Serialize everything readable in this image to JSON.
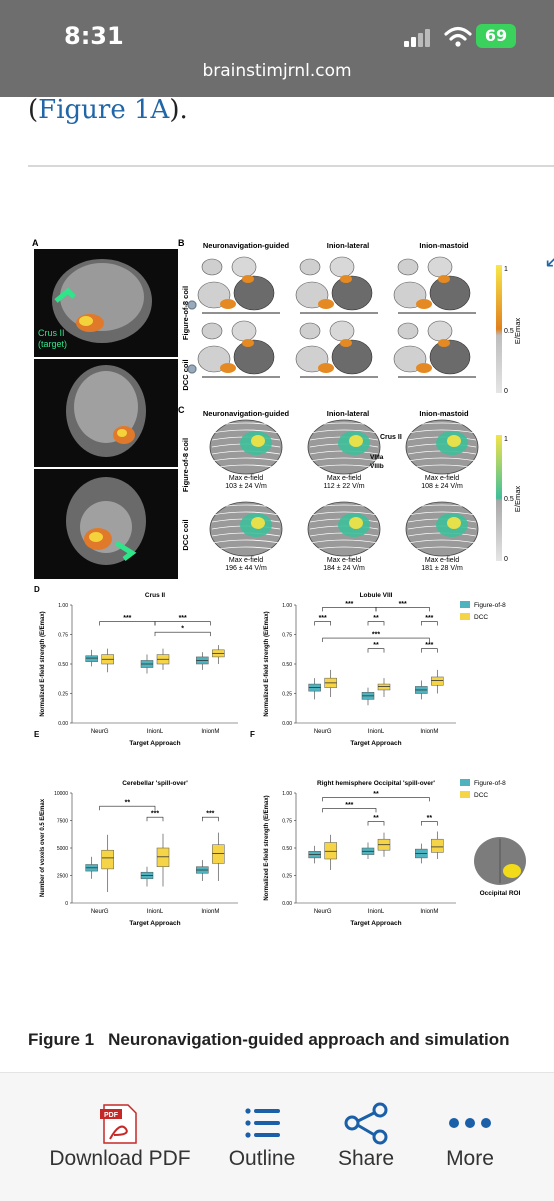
{
  "status_bar": {
    "time": "8:31",
    "url": "brainstimjrnl.com",
    "battery": "69"
  },
  "article": {
    "text_before": "(",
    "link": "Figure 1A",
    "text_after": ")."
  },
  "figure": {
    "panel_a": {
      "label": "A",
      "annotation": "Crus II\n(target)"
    },
    "panel_b": {
      "label": "B",
      "columns": [
        "Neuronavigation-guided",
        "Inion-lateral",
        "Inion-mastoid"
      ],
      "rows": [
        "Figure-of-8 coil",
        "DCC coil"
      ],
      "scale_max": "1",
      "scale_mid": "0.5",
      "scale_min": "0",
      "scale_label": "E/Emax"
    },
    "panel_c": {
      "label": "C",
      "columns": [
        "Neuronavigation-guided",
        "Inion-lateral",
        "Inion-mastoid"
      ],
      "rows": [
        "Figure-of-8 coil",
        "DCC coil"
      ],
      "region_labels": [
        "Crus II",
        "VIIIa",
        "VIIIb"
      ],
      "max_label": "Max e-field",
      "max_values": [
        "103 ± 24 V/m",
        "112 ± 22 V/m",
        "108 ± 24 V/m",
        "196 ± 44 V/m",
        "184 ± 24 V/m",
        "181 ± 28 V/m"
      ],
      "scale_max": "1",
      "scale_mid": "0.5",
      "scale_min": "0",
      "scale_label": "E/Emax"
    },
    "legend": {
      "items": [
        {
          "name": "Figure-of-8",
          "color": "#4fb3bf"
        },
        {
          "name": "DCC",
          "color": "#f5d547"
        }
      ]
    },
    "roi_label": "Occipital ROI"
  },
  "chart_data": [
    {
      "panel": "D",
      "type": "box",
      "title": "Crus II",
      "xlabel": "Target Approach",
      "ylabel": "Normalized E-field strength (E/Emax)",
      "categories": [
        "NeurG",
        "InionL",
        "InionM"
      ],
      "ylim": [
        0,
        1
      ],
      "yticks": [
        "0.00",
        "0.25",
        "0.50",
        "0.75",
        "1.00"
      ],
      "series": [
        {
          "name": "Figure-of-8",
          "boxes": [
            [
              0.48,
              0.52,
              0.55,
              0.57,
              0.62
            ],
            [
              0.42,
              0.47,
              0.5,
              0.53,
              0.58
            ],
            [
              0.45,
              0.5,
              0.53,
              0.56,
              0.6
            ]
          ]
        },
        {
          "name": "DCC",
          "boxes": [
            [
              0.43,
              0.5,
              0.54,
              0.58,
              0.63
            ],
            [
              0.45,
              0.5,
              0.54,
              0.58,
              0.63
            ],
            [
              0.5,
              0.56,
              0.59,
              0.62,
              0.66
            ]
          ]
        }
      ],
      "significance": [
        "***",
        "***",
        "*"
      ]
    },
    {
      "panel": "E",
      "type": "box",
      "title": "Cerebellar 'spill-over'",
      "xlabel": "Target Approach",
      "ylabel": "Number of voxels over 0.5 E/Emax",
      "categories": [
        "NeurG",
        "InionL",
        "InionM"
      ],
      "ylim": [
        0,
        10000
      ],
      "yticks": [
        "0",
        "2500",
        "5000",
        "7500",
        "10000"
      ],
      "series": [
        {
          "name": "Figure-of-8",
          "boxes": [
            [
              2200,
              2900,
              3200,
              3500,
              4200
            ],
            [
              1500,
              2200,
              2500,
              2800,
              3300
            ],
            [
              2000,
              2700,
              3000,
              3300,
              3900
            ]
          ]
        },
        {
          "name": "DCC",
          "boxes": [
            [
              1000,
              3100,
              4100,
              4800,
              6200
            ],
            [
              1500,
              3300,
              4200,
              5000,
              6300
            ],
            [
              2000,
              3600,
              4500,
              5300,
              6400
            ]
          ]
        }
      ],
      "significance": [
        "**",
        "***",
        "***"
      ]
    },
    {
      "panel": "D",
      "type": "box",
      "title": "Lobule VIII",
      "xlabel": "Target Approach",
      "ylabel": "Normalized E-field strength (E/Emax)",
      "categories": [
        "NeurG",
        "InionL",
        "InionM"
      ],
      "ylim": [
        0,
        1
      ],
      "yticks": [
        "0.00",
        "0.25",
        "0.50",
        "0.75",
        "1.00"
      ],
      "series": [
        {
          "name": "Figure-of-8",
          "boxes": [
            [
              0.2,
              0.27,
              0.3,
              0.33,
              0.38
            ],
            [
              0.15,
              0.2,
              0.23,
              0.26,
              0.3
            ],
            [
              0.2,
              0.25,
              0.28,
              0.31,
              0.36
            ]
          ]
        },
        {
          "name": "DCC",
          "boxes": [
            [
              0.22,
              0.3,
              0.34,
              0.38,
              0.45
            ],
            [
              0.22,
              0.28,
              0.31,
              0.33,
              0.38
            ],
            [
              0.25,
              0.32,
              0.36,
              0.39,
              0.45
            ]
          ]
        }
      ],
      "significance": [
        "***",
        "***",
        "***",
        "**",
        "***",
        "***",
        "**",
        "***"
      ]
    },
    {
      "panel": "F",
      "type": "box",
      "title": "Right hemisphere Occipital 'spill-over'",
      "xlabel": "Target Approach",
      "ylabel": "Normalized E-field strength (E/Emax)",
      "categories": [
        "NeurG",
        "InionL",
        "InionM"
      ],
      "ylim": [
        0,
        1
      ],
      "yticks": [
        "0.00",
        "0.25",
        "0.50",
        "0.75",
        "1.00"
      ],
      "series": [
        {
          "name": "Figure-of-8",
          "boxes": [
            [
              0.36,
              0.41,
              0.44,
              0.47,
              0.52
            ],
            [
              0.4,
              0.44,
              0.47,
              0.5,
              0.55
            ],
            [
              0.36,
              0.41,
              0.45,
              0.49,
              0.54
            ]
          ]
        },
        {
          "name": "DCC",
          "boxes": [
            [
              0.3,
              0.4,
              0.47,
              0.55,
              0.62
            ],
            [
              0.42,
              0.48,
              0.53,
              0.58,
              0.64
            ],
            [
              0.4,
              0.46,
              0.51,
              0.58,
              0.65
            ]
          ]
        }
      ],
      "significance": [
        "***",
        "**",
        "**",
        "**"
      ]
    }
  ],
  "caption": {
    "number": "Figure 1",
    "title": "Neuronavigation-guided approach and simulation"
  },
  "toolbar": {
    "items": [
      {
        "label": "Download PDF"
      },
      {
        "label": "Outline"
      },
      {
        "label": "Share"
      },
      {
        "label": "More"
      }
    ]
  },
  "colors": {
    "accent": "#2066a8",
    "status_bg": "#6e6e6e"
  }
}
